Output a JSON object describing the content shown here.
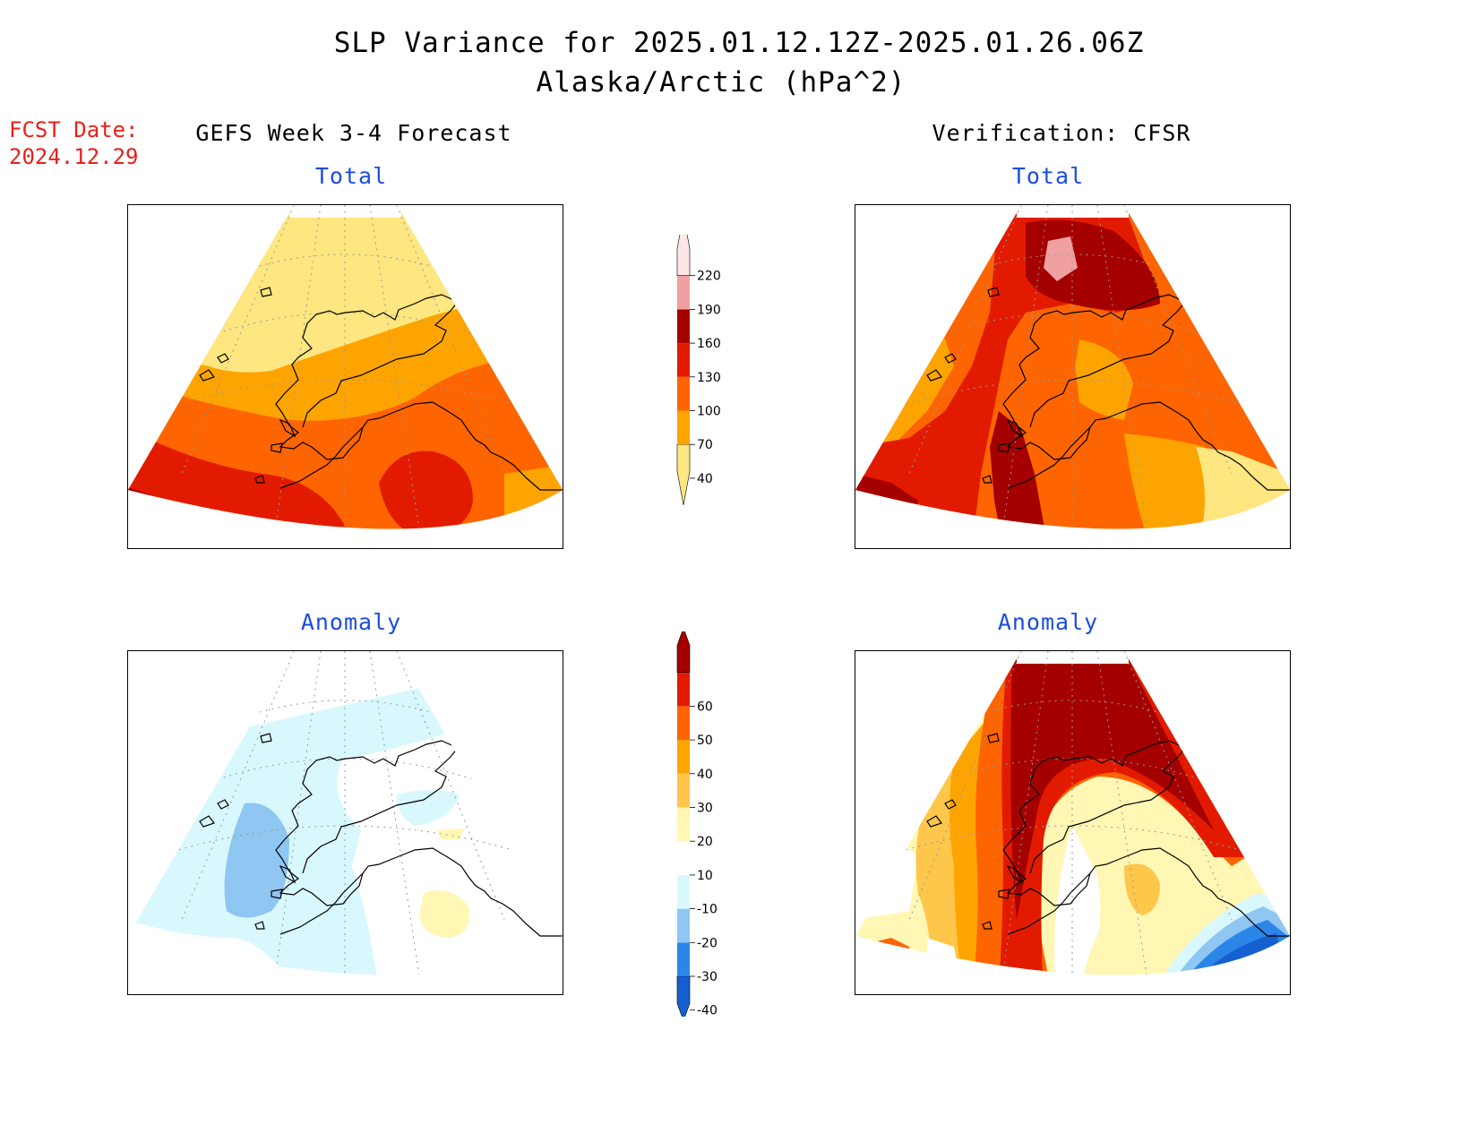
{
  "header": {
    "title": "SLP Variance for 2025.01.12.12Z-2025.01.26.06Z",
    "subtitle": "Alaska/Arctic (hPa^2)",
    "fcst_label": "FCST Date:",
    "fcst_date": "2024.12.29"
  },
  "columns": {
    "left": "GEFS Week 3-4 Forecast",
    "right": "Verification: CFSR"
  },
  "panels": {
    "forecast_total": "Total",
    "verification_total": "Total",
    "forecast_anomaly": "Anomaly",
    "verification_anomaly": "Anomaly"
  },
  "colorbars": {
    "total": {
      "levels": [
        "40",
        "70",
        "100",
        "130",
        "160",
        "190",
        "220"
      ],
      "colors": [
        "#fee680",
        "#fea400",
        "#fe6400",
        "#e21b00",
        "#a50000",
        "#f0a0a0",
        "#fde6e6"
      ]
    },
    "anomaly": {
      "levels": [
        "-40",
        "-30",
        "-20",
        "-10",
        "10",
        "20",
        "30",
        "40",
        "50",
        "60"
      ],
      "colors": [
        "#1560d0",
        "#2c86e8",
        "#90c6f2",
        "#d8f8fd",
        "#ffffff",
        "#fff7b3",
        "#fec64a",
        "#fea400",
        "#fe6400",
        "#e21b00",
        "#a50000"
      ]
    }
  }
}
